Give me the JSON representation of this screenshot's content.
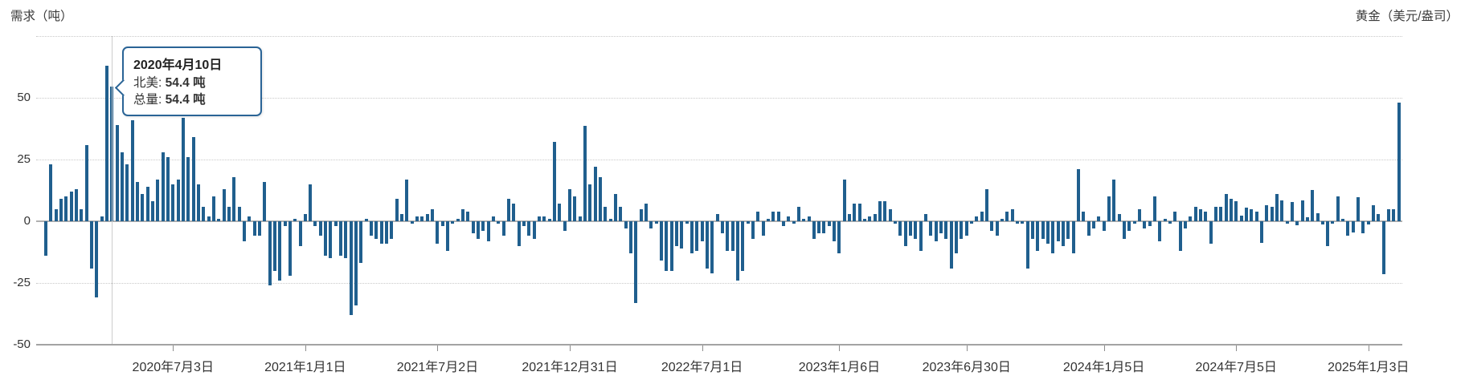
{
  "header": {
    "left_label": "需求（吨）",
    "right_label": "黄金（美元/盎司）"
  },
  "tooltip": {
    "date": "2020年4月10日",
    "rows": [
      {
        "label": "北美:",
        "value": "54.4 吨"
      },
      {
        "label": "总量:",
        "value": "54.4 吨"
      }
    ]
  },
  "colors": {
    "bar": "#205f8e",
    "tooltip_border": "#2a6496",
    "gridline": "#c9c9c9",
    "zero_line": "#b0b0b0",
    "axis_line": "#a3a3a3",
    "crosshair": "#cccccc",
    "text": "#333333"
  },
  "chart_data": {
    "type": "bar",
    "title": "",
    "xlabel": "",
    "ylabel_left": "需求（吨）",
    "ylabel_right": "黄金（美元/盎司）",
    "grid": "dotted-horizontal",
    "legend_position": "none",
    "y_axis": {
      "range": [
        -50,
        75
      ],
      "tick_labels": [
        "50",
        "25",
        "0",
        "-25",
        "-50"
      ],
      "tick_values": [
        50,
        25,
        0,
        -25,
        -50
      ],
      "dotted_gridline_values": [
        75,
        50,
        25,
        -25
      ],
      "zero_line_value": 0,
      "bottom_axis_value": -50
    },
    "x_axis": {
      "unit": "week",
      "ticks": [
        {
          "label": "2020年7月3日",
          "week_index": 25
        },
        {
          "label": "2021年1月1日",
          "week_index": 51
        },
        {
          "label": "2021年7月2日",
          "week_index": 77
        },
        {
          "label": "2021年12月31日",
          "week_index": 103
        },
        {
          "label": "2022年7月1日",
          "week_index": 129
        },
        {
          "label": "2023年1月6日",
          "week_index": 156
        },
        {
          "label": "2023年6月30日",
          "week_index": 181
        },
        {
          "label": "2024年1月5日",
          "week_index": 208
        },
        {
          "label": "2024年7月5日",
          "week_index": 234
        },
        {
          "label": "2025年1月3日",
          "week_index": 260
        }
      ]
    },
    "highlight": {
      "week_index": 13,
      "date": "2020年4月10日",
      "series": "北美",
      "value": 54.4,
      "total": 54.4
    },
    "series": [
      {
        "name": "北美",
        "unit": "吨",
        "weekly_values": [
          -14,
          23,
          5,
          9,
          10,
          12,
          13,
          5,
          31,
          -19,
          -31,
          2,
          63,
          54.4,
          39,
          28,
          23,
          41,
          16,
          11,
          14,
          8,
          17,
          28,
          26,
          15,
          17,
          42,
          26,
          34,
          15,
          6,
          2,
          10,
          1,
          13,
          6,
          18,
          6,
          -8,
          2,
          -6,
          -6,
          16,
          -26,
          -20,
          -24,
          -2,
          -22,
          1,
          -10,
          3,
          15,
          -2,
          -6,
          -14,
          -15,
          -2,
          -14,
          -15,
          -38,
          -34,
          -17,
          1,
          -6,
          -7,
          -9,
          -9,
          -7,
          9,
          3,
          17,
          -1,
          2,
          2,
          3,
          5,
          -9,
          -2,
          -12,
          -1,
          1,
          5,
          4,
          -5,
          -7,
          -4,
          -8,
          2,
          -1,
          -6,
          9,
          7,
          -10,
          -2,
          -6,
          -7,
          2,
          2,
          1,
          32,
          7,
          -4,
          13,
          10,
          2,
          38.5,
          15,
          22,
          18,
          6,
          1,
          11,
          6,
          -3,
          -13,
          -33,
          5,
          7,
          -3,
          -1,
          -16,
          -20,
          -20,
          -10,
          -11,
          -1,
          -13,
          -12,
          -8,
          -19,
          -21,
          3,
          -5,
          -12,
          -12,
          -24,
          -20,
          -1,
          -7,
          4,
          -6,
          1,
          4,
          4,
          -2,
          2,
          -1,
          6,
          1,
          2,
          -7,
          -5,
          -5,
          -2,
          -8,
          -13,
          17,
          3,
          7,
          7,
          1,
          2,
          3,
          8,
          8,
          5,
          -1,
          -6,
          -10,
          -6,
          -7,
          -12,
          3,
          -6,
          -8,
          -5,
          -7,
          -19,
          -13,
          -7,
          -6,
          -1,
          2,
          4,
          13,
          -4,
          -6,
          1,
          4,
          5,
          -1,
          -1,
          -19,
          -7,
          -12,
          -7,
          -9,
          -13,
          -8,
          -10,
          -7,
          -13,
          21,
          4,
          -6,
          -3,
          2,
          -4,
          10,
          17,
          3,
          -7,
          -4,
          -1,
          5,
          -3,
          -2,
          10,
          -8,
          1,
          -1,
          4,
          -12,
          -3,
          2,
          6,
          5,
          4,
          -9,
          6,
          6,
          11,
          9,
          8,
          2.2,
          5.6,
          5,
          3.8,
          -8.7,
          6.5,
          6,
          11,
          8.6,
          -1,
          7.8,
          -1.6,
          8.5,
          1.6,
          12.6,
          3.4,
          -1.2,
          -10,
          -0.9,
          10.1,
          1,
          -5.9,
          -4.6,
          9.9,
          -4.8,
          -1.4,
          6.4,
          2.9,
          -21.3,
          5,
          5,
          48
        ]
      }
    ]
  }
}
